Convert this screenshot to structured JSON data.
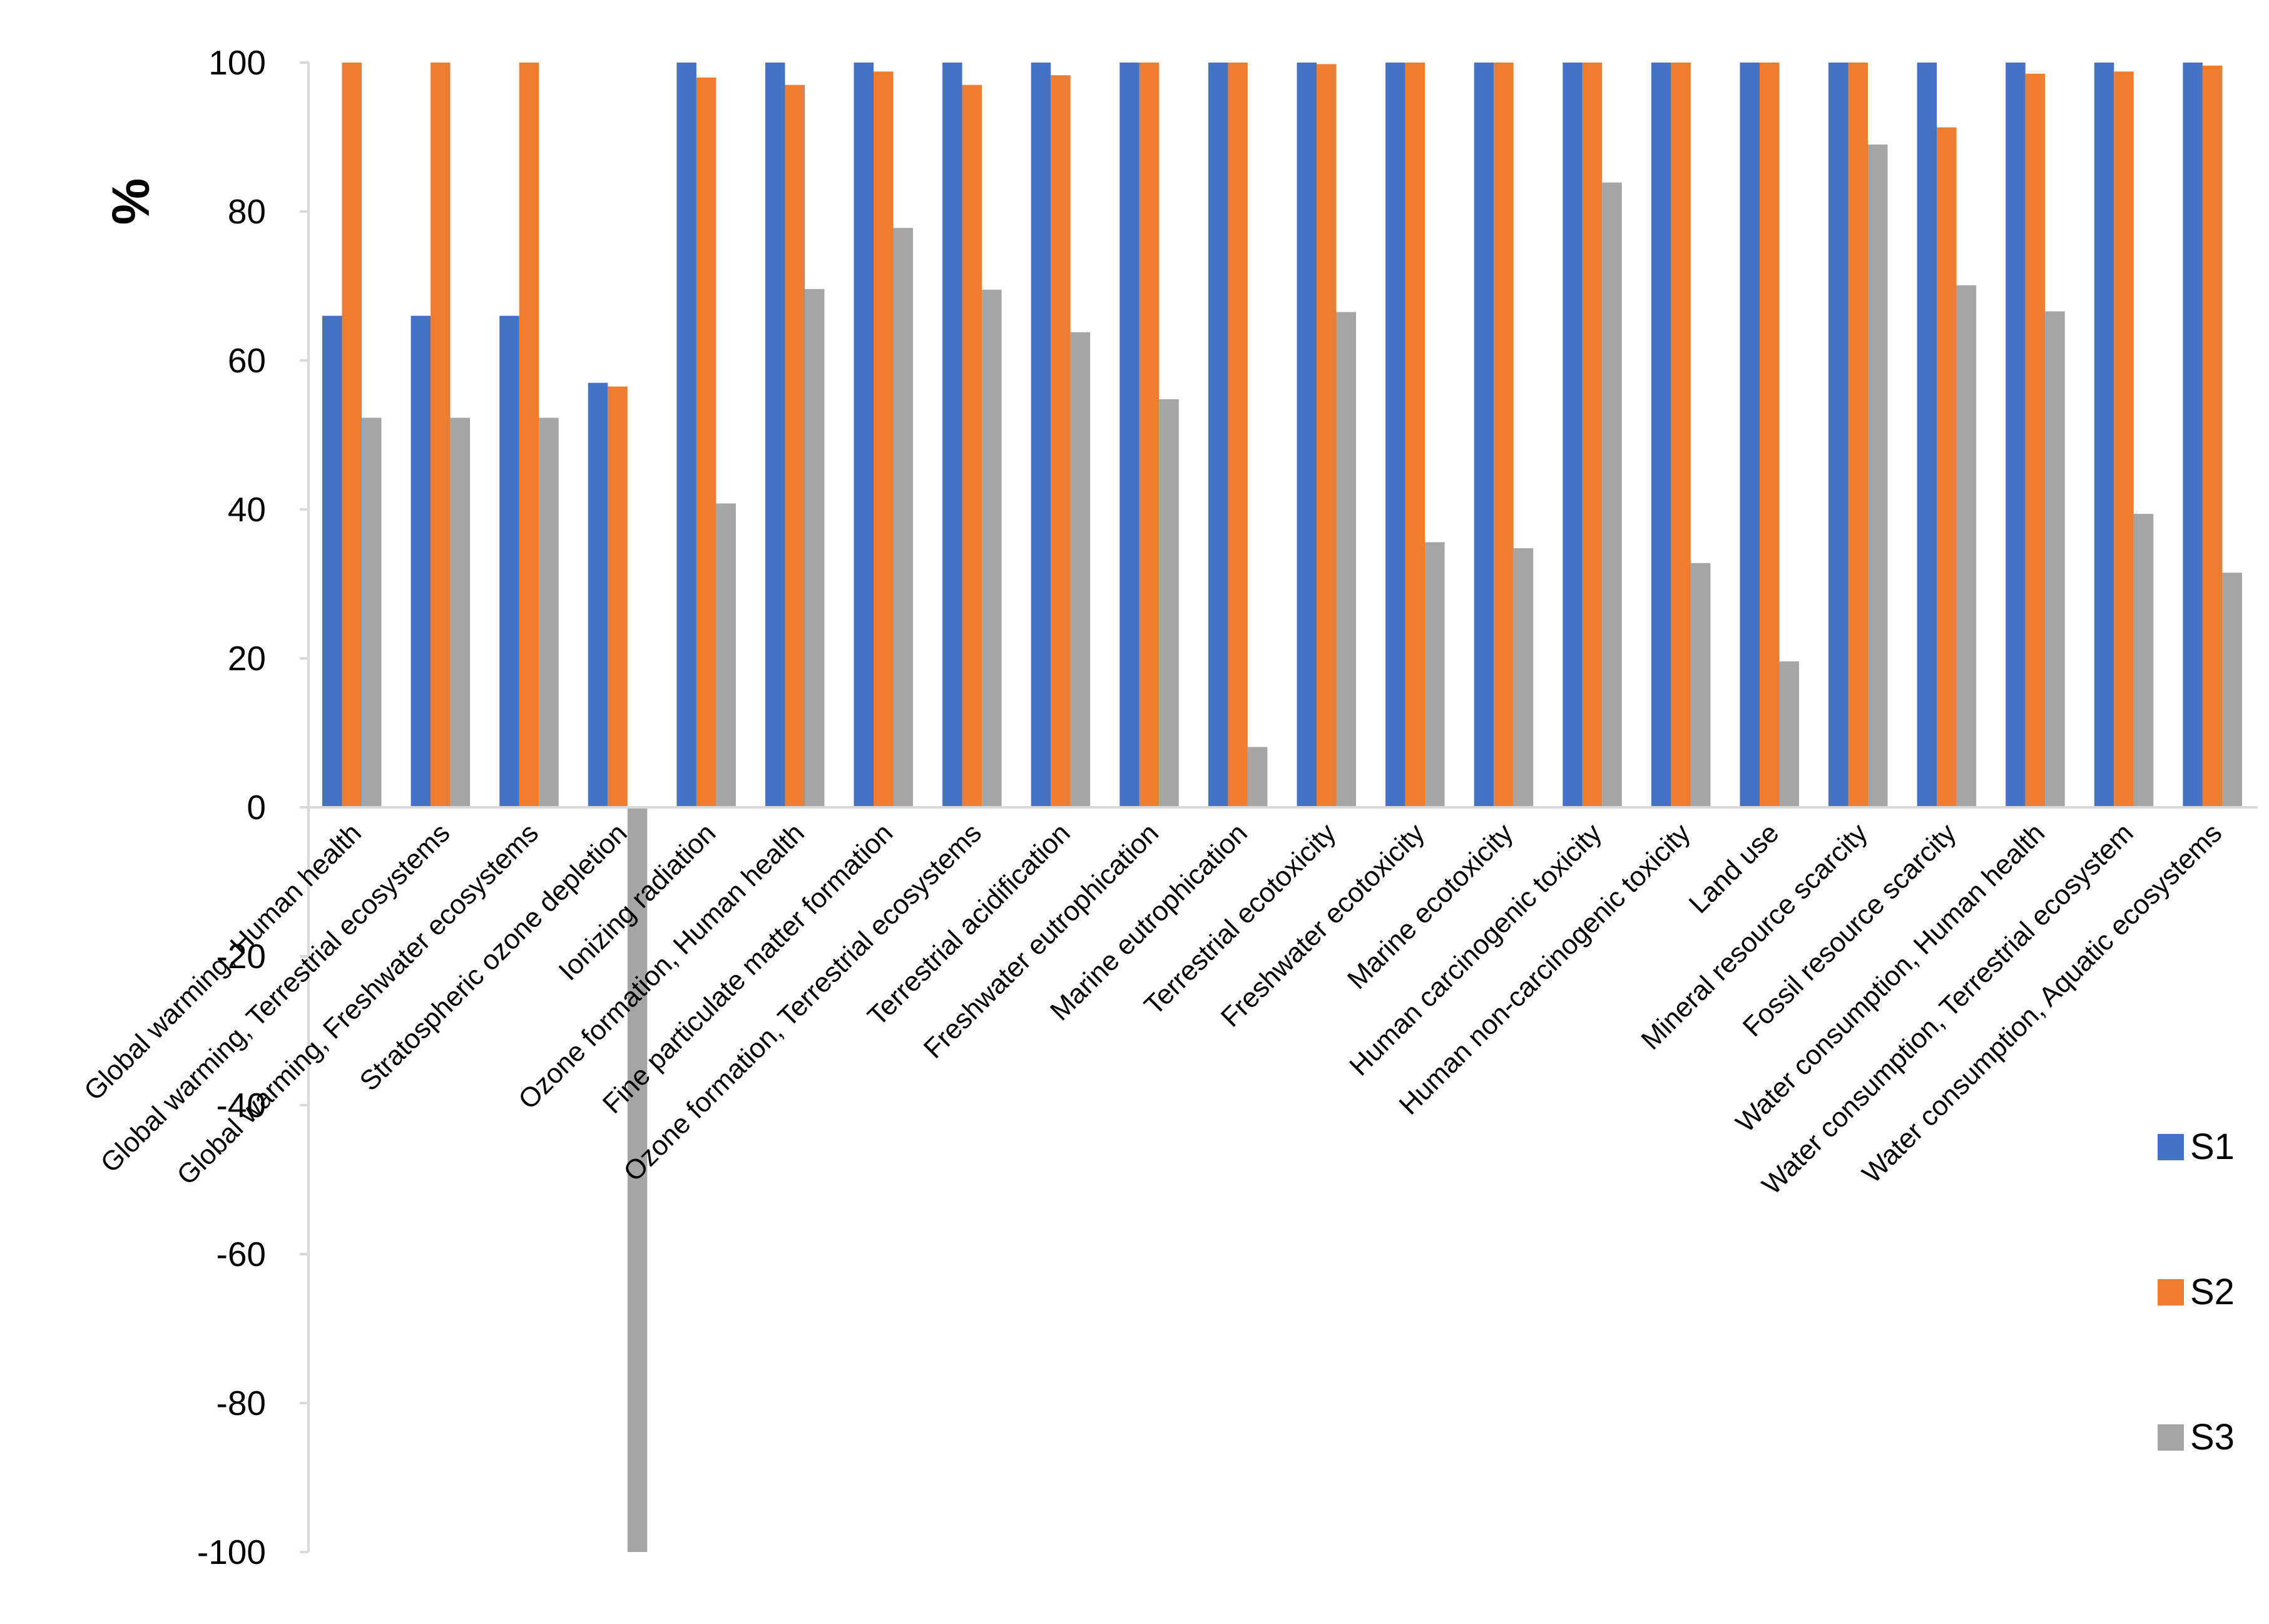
{
  "chart_data": {
    "type": "bar",
    "title": "",
    "xlabel": "",
    "ylabel": "%",
    "ylim": [
      -100,
      100
    ],
    "yticks": [
      100,
      80,
      60,
      40,
      20,
      0,
      -20,
      -40,
      -60,
      -80,
      -100
    ],
    "grid": false,
    "legend_position": "right",
    "categories": [
      "Global warming, Human health",
      "Global warming, Terrestrial ecosystems",
      "Global warming, Freshwater ecosystems",
      "Stratospheric ozone depletion",
      "Ionizing radiation",
      "Ozone formation, Human health",
      "Fine particulate matter formation",
      "Ozone formation, Terrestrial ecosystems",
      "Terrestrial acidification",
      "Freshwater eutrophication",
      "Marine eutrophication",
      "Terrestrial ecotoxicity",
      "Freshwater ecotoxicity",
      "Marine ecotoxicity",
      "Human carcinogenic toxicity",
      "Human non-carcinogenic toxicity",
      "Land use",
      "Mineral resource scarcity",
      "Fossil resource scarcity",
      "Water consumption, Human health",
      "Water consumption, Terrestrial ecosystem",
      "Water consumption, Aquatic ecosystems"
    ],
    "series": [
      {
        "name": "S1",
        "color": "#4472C4",
        "values": [
          66,
          66,
          66,
          57,
          100,
          100,
          100,
          100,
          100,
          100,
          100,
          100,
          100,
          100,
          100,
          100,
          100,
          100,
          100,
          100,
          100,
          100
        ]
      },
      {
        "name": "S2",
        "color": "#ED7D31",
        "values": [
          100,
          100,
          100,
          56.5,
          98,
          97,
          98.8,
          97,
          98.3,
          100,
          100,
          99.8,
          100,
          100,
          100,
          100,
          100,
          100,
          91.3,
          98.5,
          98.8,
          99.6
        ]
      },
      {
        "name": "S3",
        "color": "#A5A5A5",
        "values": [
          52.3,
          52.3,
          52.3,
          -100,
          40.8,
          69.6,
          77.8,
          69.5,
          63.8,
          54.8,
          8.1,
          66.5,
          35.6,
          34.8,
          83.9,
          32.8,
          19.6,
          89,
          70.1,
          66.6,
          39.4,
          31.5
        ]
      }
    ]
  }
}
